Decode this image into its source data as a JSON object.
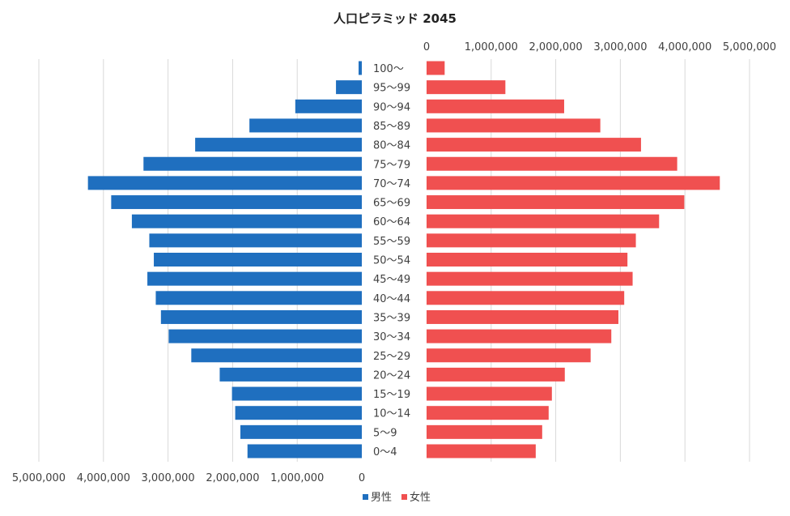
{
  "chart_data": {
    "type": "bar",
    "title": "人口ピラミッド 2045",
    "categories": [
      "0〜4",
      "5〜9",
      "10〜14",
      "15〜19",
      "20〜24",
      "25〜29",
      "30〜34",
      "35〜39",
      "40〜44",
      "45〜49",
      "50〜54",
      "55〜59",
      "60〜64",
      "65〜69",
      "70〜74",
      "75〜79",
      "80〜84",
      "85〜89",
      "90〜94",
      "95〜99",
      "100〜"
    ],
    "series": [
      {
        "name": "男性",
        "color": "#1f6fbf",
        "values": [
          1770000,
          1880000,
          1960000,
          2010000,
          2200000,
          2640000,
          2990000,
          3110000,
          3190000,
          3320000,
          3220000,
          3290000,
          3560000,
          3880000,
          4240000,
          3380000,
          2580000,
          1740000,
          1030000,
          400000,
          50000
        ]
      },
      {
        "name": "女性",
        "color": "#f05050",
        "values": [
          1690000,
          1790000,
          1890000,
          1940000,
          2140000,
          2540000,
          2860000,
          2970000,
          3060000,
          3190000,
          3110000,
          3240000,
          3600000,
          3990000,
          4540000,
          3880000,
          3320000,
          2690000,
          2130000,
          1220000,
          280000
        ]
      }
    ],
    "left_axis": {
      "direction": "reversed",
      "range": [
        0,
        5000000
      ],
      "ticks": [
        "0",
        "1,000,000",
        "2,000,000",
        "3,000,000",
        "4,000,000",
        "5,000,000"
      ],
      "position": "bottom"
    },
    "right_axis": {
      "range": [
        0,
        5000000
      ],
      "ticks": [
        "0",
        "1,000,000",
        "2,000,000",
        "3,000,000",
        "4,000,000",
        "5,000,000"
      ],
      "position": "top"
    },
    "grid": true,
    "legend": "bottom"
  }
}
